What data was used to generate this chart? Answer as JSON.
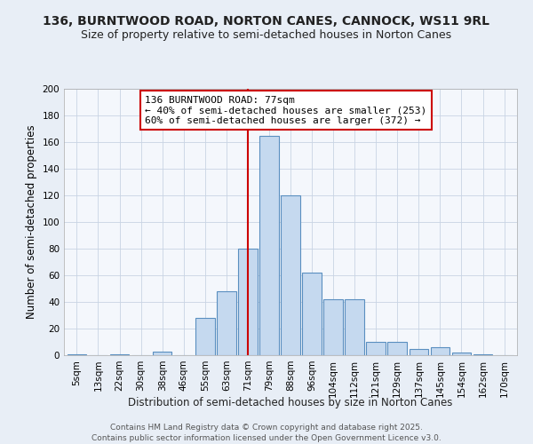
{
  "title": "136, BURNTWOOD ROAD, NORTON CANES, CANNOCK, WS11 9RL",
  "subtitle": "Size of property relative to semi-detached houses in Norton Canes",
  "xlabel": "Distribution of semi-detached houses by size in Norton Canes",
  "ylabel": "Number of semi-detached properties",
  "annotation_line1": "136 BURNTWOOD ROAD: 77sqm",
  "annotation_line2": "← 40% of semi-detached houses are smaller (253)",
  "annotation_line3": "60% of semi-detached houses are larger (372) →",
  "footer_line1": "Contains HM Land Registry data © Crown copyright and database right 2025.",
  "footer_line2": "Contains public sector information licensed under the Open Government Licence v3.0.",
  "categories": [
    "5sqm",
    "13sqm",
    "22sqm",
    "30sqm",
    "38sqm",
    "46sqm",
    "55sqm",
    "63sqm",
    "71sqm",
    "79sqm",
    "88sqm",
    "96sqm",
    "104sqm",
    "112sqm",
    "121sqm",
    "129sqm",
    "137sqm",
    "145sqm",
    "154sqm",
    "162sqm",
    "170sqm"
  ],
  "values": [
    1,
    0,
    1,
    0,
    3,
    0,
    28,
    48,
    80,
    165,
    120,
    62,
    42,
    42,
    10,
    10,
    5,
    6,
    2,
    1,
    0
  ],
  "bar_color": "#c5d9ef",
  "bar_edge_color": "#5a8fc0",
  "vline_x": 8,
  "vline_color": "#cc0000",
  "annotation_box_edge": "#cc0000",
  "ylim": [
    0,
    200
  ],
  "yticks": [
    0,
    20,
    40,
    60,
    80,
    100,
    120,
    140,
    160,
    180,
    200
  ],
  "bg_color": "#e8eef6",
  "plot_bg_color": "#f4f7fc",
  "title_fontsize": 10,
  "subtitle_fontsize": 9,
  "axis_label_fontsize": 8.5,
  "tick_fontsize": 7.5,
  "annotation_fontsize": 8,
  "footer_fontsize": 6.5
}
